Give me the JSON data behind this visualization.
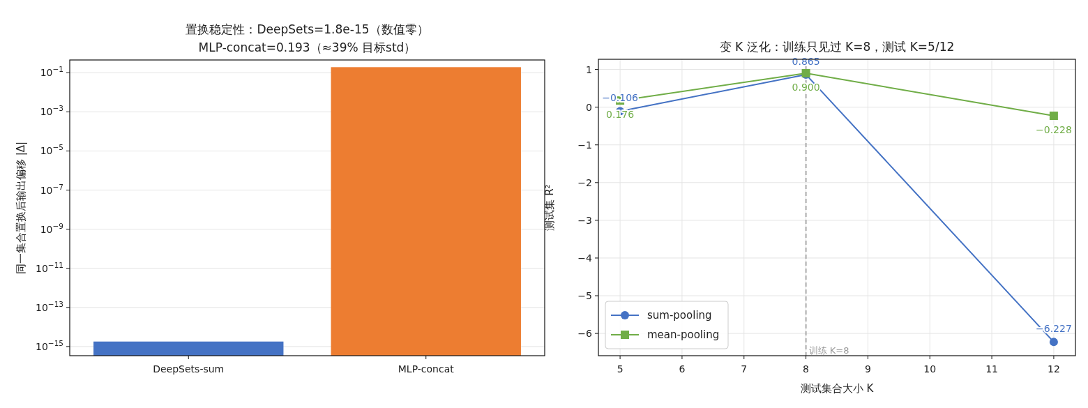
{
  "chart_data": [
    {
      "type": "bar",
      "title": "置换稳定性：DeepSets=1.8e-15（数值零）\nMLP-concat=0.193（≈39% 目标std）",
      "ylabel": "同一集合置换后输出偏移 |Δ|",
      "categories": [
        "DeepSets-sum",
        "MLP-concat"
      ],
      "values": [
        1.8e-15,
        0.193
      ],
      "colors": [
        "#4472c4",
        "#ed7d31"
      ],
      "log": true,
      "ylim": [
        3.4e-16,
        0.45
      ],
      "yticks": [
        {
          "value": 1e-15,
          "label": "10$^{−15}$"
        },
        {
          "value": 1e-13,
          "label": "10$^{−13}$"
        },
        {
          "value": 1e-11,
          "label": "10$^{−11}$"
        },
        {
          "value": 1e-09,
          "label": "10$^{−9}$"
        },
        {
          "value": 1e-07,
          "label": "10$^{−7}$"
        },
        {
          "value": 1e-05,
          "label": "10$^{−5}$"
        },
        {
          "value": 0.001,
          "label": "10$^{−3}$"
        },
        {
          "value": 0.1,
          "label": "10$^{−1}$"
        }
      ],
      "grid": "y"
    },
    {
      "type": "line",
      "title": "变 K 泛化：训练只见过 K=8，测试 K=5/12",
      "xlabel": "测试集合大小 K",
      "ylabel": "测试集 R²",
      "x": [
        5,
        8,
        12
      ],
      "series": [
        {
          "name": "sum-pooling",
          "color": "#4472c4",
          "marker": "circle",
          "values": [
            -0.106,
            0.865,
            -6.227
          ],
          "value_labels": [
            "−0.106",
            "0.865",
            "−6.227"
          ]
        },
        {
          "name": "mean-pooling",
          "color": "#70ad47",
          "marker": "square",
          "values": [
            0.176,
            0.9,
            -0.228
          ],
          "value_labels": [
            "0.176",
            "0.900",
            "−0.228"
          ]
        }
      ],
      "xlim": [
        4.65,
        12.35
      ],
      "xticks": [
        5,
        6,
        7,
        8,
        9,
        10,
        11,
        12
      ],
      "ylim": [
        -6.59,
        1.27
      ],
      "yticks": [
        {
          "value": -6,
          "label": "−6"
        },
        {
          "value": -5,
          "label": "−5"
        },
        {
          "value": -4,
          "label": "−4"
        },
        {
          "value": -3,
          "label": "−3"
        },
        {
          "value": -2,
          "label": "−2"
        },
        {
          "value": -1,
          "label": "−1"
        },
        0,
        1
      ],
      "grid": true,
      "legend": "bottom left",
      "ref_lines": [
        {
          "axis": "x",
          "value": 8,
          "label": "训练 K=8",
          "color": "#aaaaaa",
          "line_style": "dashed"
        }
      ]
    }
  ]
}
